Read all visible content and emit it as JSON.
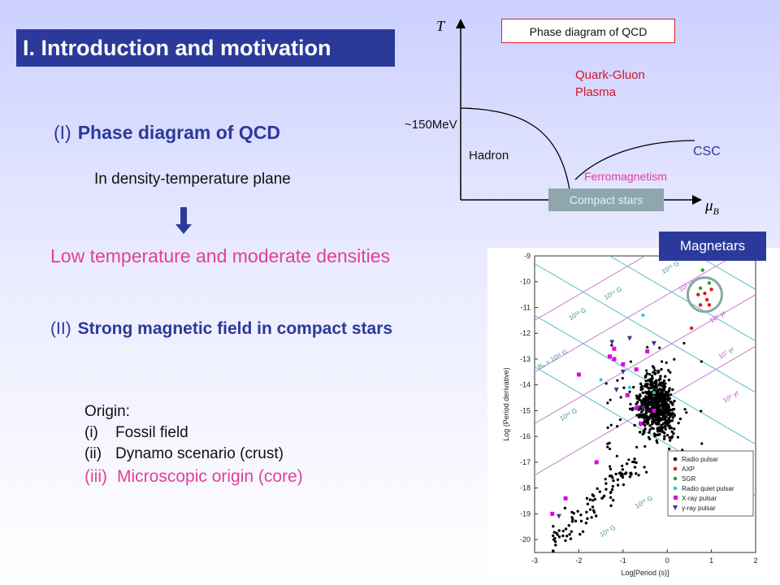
{
  "title": "I. Introduction and motivation",
  "section1": {
    "num": "(I)",
    "label": "Phase diagram of QCD"
  },
  "density_plane": "In density-temperature plane",
  "low_temp": "Low temperature and moderate densities",
  "section2": {
    "num": "(II)",
    "label": "Strong magnetic field in compact stars"
  },
  "origin": {
    "heading": "Origin:",
    "items": [
      {
        "num": "(i)",
        "text": "Fossil field"
      },
      {
        "num": "(ii)",
        "text": "Dynamo scenario  (crust)"
      },
      {
        "num": "(iii)",
        "text": "Microscopic origin (core)"
      }
    ]
  },
  "phase": {
    "box_label": "Phase diagram of QCD",
    "t_axis": "T",
    "mu_axis": "μ",
    "mu_sub": "B",
    "qgp": [
      "Quark-Gluon",
      "Plasma"
    ],
    "temp_tick": "~150MeV",
    "hadron": "Hadron",
    "csc": "CSC",
    "ferro": "Ferromagnetism",
    "compact": "Compact stars"
  },
  "magnetars_label": "Magnetars",
  "chart_data": {
    "type": "scatter",
    "xlabel": "Log[Period (s)]",
    "ylabel": "Log (Period derivative)",
    "x_ticks": [
      "-3",
      "-2",
      "-1",
      "0",
      "1",
      "2"
    ],
    "y_ticks": [
      "-9",
      "-10",
      "-11",
      "-12",
      "-13",
      "-14",
      "-15",
      "-16",
      "-17",
      "-18",
      "-19",
      "-20"
    ],
    "xlim": [
      -3,
      2
    ],
    "ylim": [
      -20.5,
      -9
    ],
    "b_lines": [
      "10¹⁵ G",
      "10¹⁴ G",
      "10¹³ G",
      "B₀ = 10¹² G",
      "10¹¹ G",
      "10¹⁰ G",
      "10⁹ G"
    ],
    "age_lines": [
      "10³ yr",
      "10⁵ yr",
      "10⁷ yr",
      "10⁹ yr"
    ],
    "legend": [
      "Radio pulsar",
      "AXP",
      "SGR",
      "Radio quiet pulsar",
      "X-ray pulsar",
      "γ-ray pulsar"
    ],
    "legend_placement": "bottom-right",
    "colors": {
      "radio": "#000000",
      "axp": "#e41a1c",
      "sgr": "#2ca02c",
      "radio_quiet": "#19d3d3",
      "xray": "#e100e1",
      "gamma": "#4b2f8a",
      "b_line": "#54bfc6",
      "age_line": "#c77cd2"
    }
  }
}
